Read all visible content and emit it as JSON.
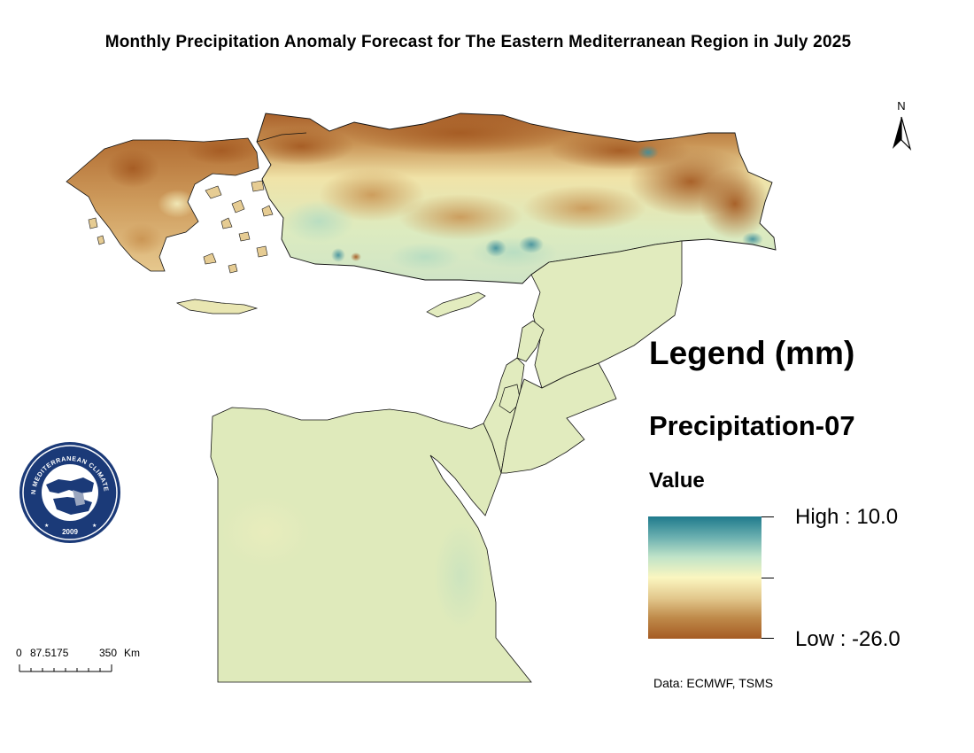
{
  "map": {
    "title": "Monthly Precipitation Anomaly Forecast for The Eastern Mediterranean Region in July 2025",
    "north_label": "N"
  },
  "legend": {
    "heading": "Legend (mm)",
    "layer": "Precipitation-07",
    "field": "Value",
    "high_label": "High : 10.0",
    "low_label": "Low : -26.0",
    "high_value": 10.0,
    "low_value": -26.0,
    "ramp_colors": [
      "#1f7a8c",
      "#6bb0b0",
      "#bfe3c8",
      "#fbf6c0",
      "#e2c78c",
      "#bf8a4a",
      "#a55b23"
    ]
  },
  "scale_bar": {
    "labels": [
      "0",
      "87.5175",
      "350",
      "Km"
    ]
  },
  "source": "Data: ECMWF, TSMS",
  "logo": {
    "text": "EASTERN MEDITERRANEAN CLIMATE CENTRE",
    "year": "2009"
  },
  "colors": {
    "dry_strong": "#a55b23",
    "dry_moderate": "#c8914f",
    "dry_light": "#e6cc93",
    "neutral": "#fbf3c4",
    "neutral_green": "#dfeabb",
    "wet_light": "#b5dcc2",
    "wet_strong": "#3f8f9c",
    "border": "#111111",
    "logo_navy": "#1b3a78"
  }
}
